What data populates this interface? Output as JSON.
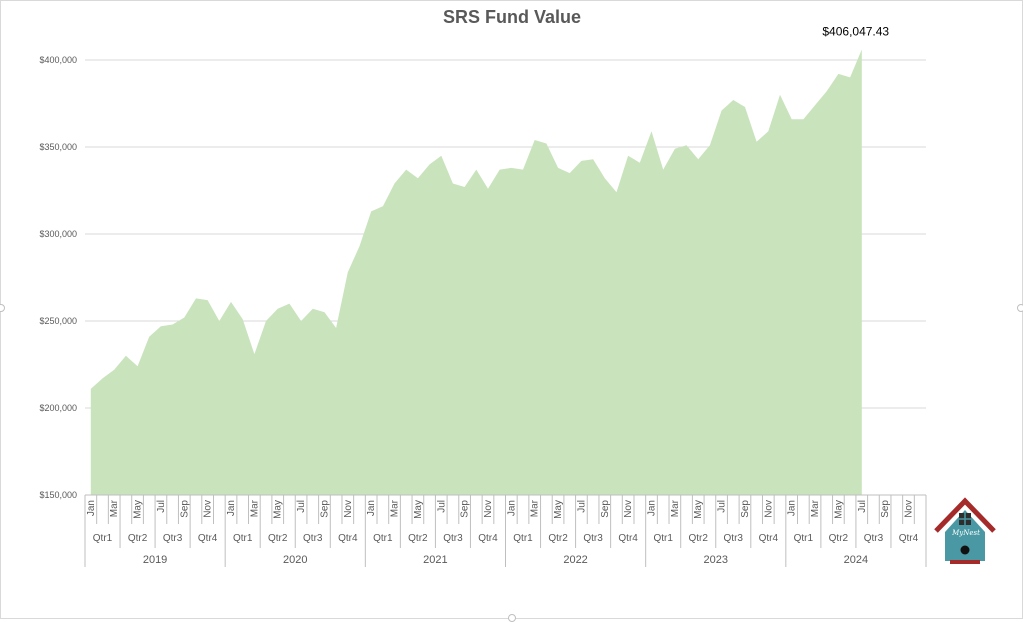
{
  "chart_data": {
    "type": "area",
    "title": "SRS Fund Value",
    "ylim": [
      150000,
      400000
    ],
    "yticks": [
      150000,
      200000,
      250000,
      300000,
      350000,
      400000
    ],
    "ytick_labels": [
      "$150,000",
      "$200,000",
      "$250,000",
      "$300,000",
      "$350,000",
      "$400,000"
    ],
    "month_labels": [
      "Jan",
      "Mar",
      "May",
      "Jul",
      "Sep",
      "Nov"
    ],
    "quarters": [
      "Qtr1",
      "Qtr2",
      "Qtr3",
      "Qtr4"
    ],
    "years": [
      "2019",
      "2020",
      "2021",
      "2022",
      "2023",
      "2024"
    ],
    "grid": true,
    "legend": "none",
    "fill_color": "#c9e3bd",
    "series": [
      {
        "values": [
          211000,
          217000,
          222000,
          230000,
          224000,
          241000,
          247000,
          248000,
          252000,
          263000,
          262000,
          250000,
          261000,
          251000,
          231000,
          250000,
          257000,
          260000,
          250000,
          257000,
          255000,
          246000,
          278000,
          293000,
          313000,
          316000,
          329000,
          337000,
          332000,
          340000,
          345000,
          329000,
          327000,
          337000,
          326000,
          337000,
          338000,
          337000,
          354000,
          352000,
          338000,
          335000,
          342000,
          343000,
          332000,
          324000,
          345000,
          341000,
          359000,
          337000,
          349000,
          351000,
          343000,
          351000,
          371000,
          377000,
          373000,
          353000,
          359000,
          380000,
          366000,
          366000,
          374000,
          382000,
          392000,
          390000,
          406047.43
        ]
      }
    ],
    "annotation": "$406,047.43"
  },
  "logo_text": "MyNest",
  "colors": {
    "roof": "#a52a2a",
    "house": "#4a98a3",
    "window_frame": "#3b3b3b",
    "grid": "#d9d9d9"
  }
}
